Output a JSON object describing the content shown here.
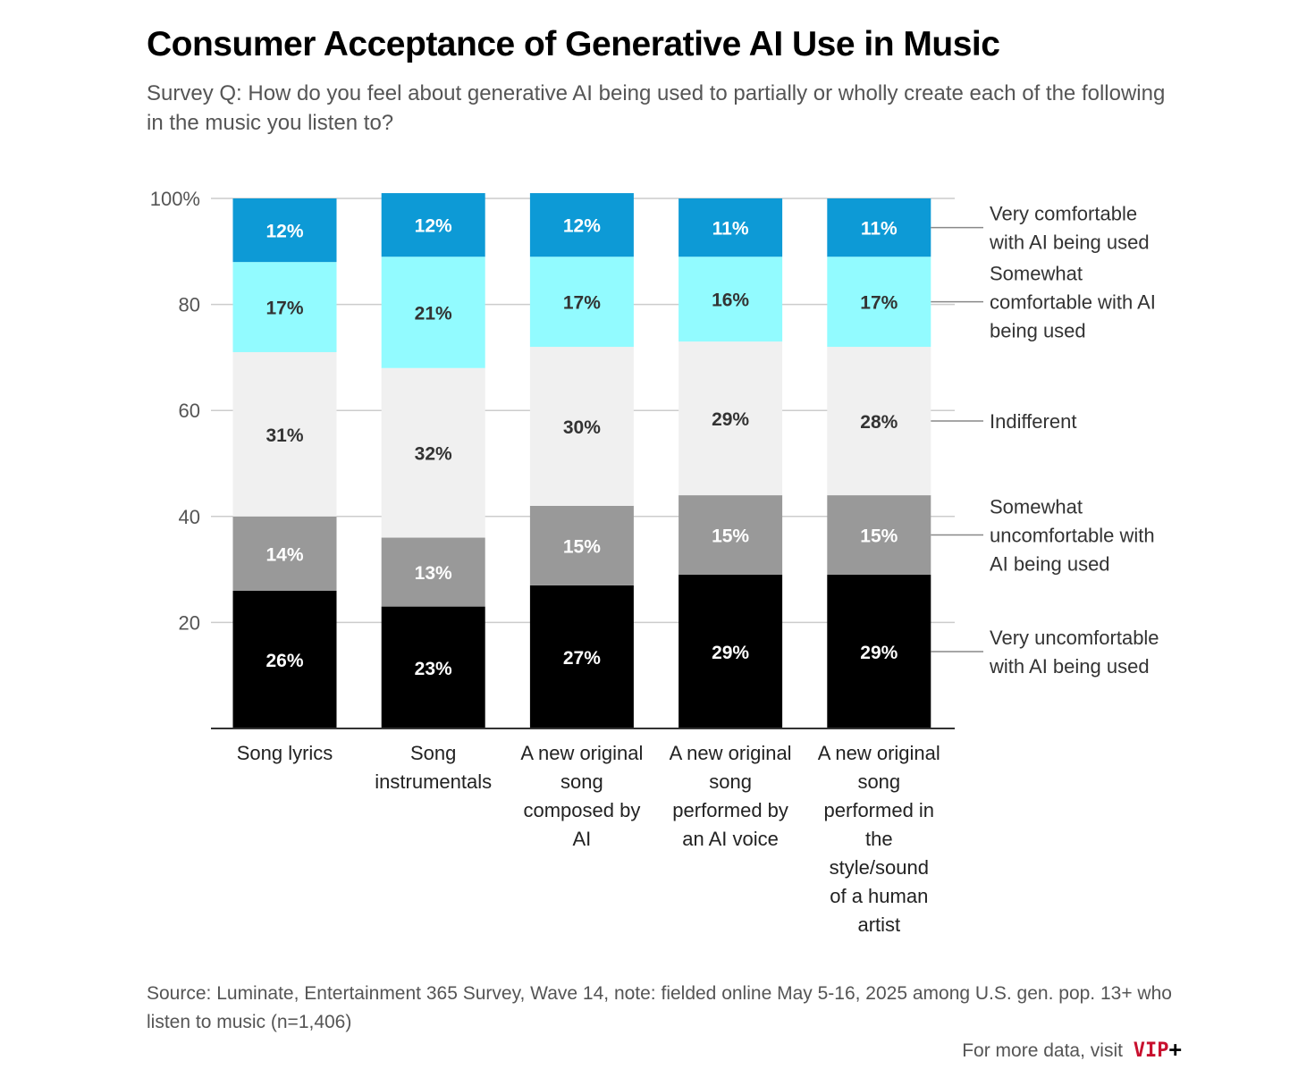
{
  "title": "Consumer Acceptance of Generative AI Use in Music",
  "subtitle": "Survey Q: How do you feel about generative AI being used to partially or wholly create each of the following in the music you listen to?",
  "source": "Source: Luminate, Entertainment 365 Survey, Wave 14, note: fielded online May 5-16, 2025 among U.S. gen. pop. 13+ who listen to music (n=1,406)",
  "footer": {
    "text": "For more data, visit",
    "brand": "VIP",
    "brand_plus": "+"
  },
  "colors": {
    "very_comfortable": "#0d9ad6",
    "somewhat_comfortable": "#92fbff",
    "indifferent": "#f0f0f0",
    "somewhat_uncomfortable": "#999999",
    "very_uncomfortable": "#000000",
    "grid": "#cccccc",
    "axis": "#333333",
    "brand": "#c8102e"
  },
  "chart_data": {
    "type": "bar",
    "stacked": true,
    "categories": [
      "Song lyrics",
      "Song instrumentals",
      "A new original song composed by AI",
      "A new original song performed by an AI voice",
      "A new original song performed in the style/sound of a human artist"
    ],
    "category_label_lines": [
      [
        "Song lyrics"
      ],
      [
        "Song",
        "instrumentals"
      ],
      [
        "A new original",
        "song",
        "composed by",
        "AI"
      ],
      [
        "A new original",
        "song",
        "performed by",
        "an AI voice"
      ],
      [
        "A new original",
        "song",
        "performed in",
        "the",
        "style/sound",
        "of a human",
        "artist"
      ]
    ],
    "series": [
      {
        "name": "Very uncomfortable with AI being used",
        "label_lines": [
          "Very uncomfortable",
          "with AI being used"
        ],
        "color_key": "very_uncomfortable",
        "label_color": "#ffffff",
        "values": [
          26,
          23,
          27,
          29,
          29
        ],
        "labels": [
          "26%",
          "23%",
          "27%",
          "29%",
          "29%"
        ]
      },
      {
        "name": "Somewhat uncomfortable with AI being used",
        "label_lines": [
          "Somewhat",
          "uncomfortable with",
          "AI being used"
        ],
        "color_key": "somewhat_uncomfortable",
        "label_color": "#ffffff",
        "values": [
          14,
          13,
          15,
          15,
          15
        ],
        "labels": [
          "14%",
          "13%",
          "15%",
          "15%",
          "15%"
        ]
      },
      {
        "name": "Indifferent",
        "label_lines": [
          "Indifferent"
        ],
        "color_key": "indifferent",
        "label_color": "#333333",
        "values": [
          31,
          32,
          30,
          29,
          28
        ],
        "labels": [
          "31%",
          "32%",
          "30%",
          "29%",
          "28%"
        ]
      },
      {
        "name": "Somewhat comfortable with AI being used",
        "label_lines": [
          "Somewhat",
          "comfortable with AI",
          "being used"
        ],
        "color_key": "somewhat_comfortable",
        "label_color": "#333333",
        "values": [
          17,
          21,
          17,
          16,
          17
        ],
        "labels": [
          "17%",
          "21%",
          "17%",
          "16%",
          "17%"
        ]
      },
      {
        "name": "Very comfortable with AI being used",
        "label_lines": [
          "Very comfortable",
          "with AI being used"
        ],
        "color_key": "very_comfortable",
        "label_color": "#ffffff",
        "values": [
          12,
          12,
          12,
          11,
          11
        ],
        "labels": [
          "12%",
          "12%",
          "12%",
          "11%",
          "11%"
        ]
      }
    ],
    "ylim": [
      0,
      100
    ],
    "yticks": [
      20,
      40,
      60,
      80,
      100
    ],
    "ytick_labels": [
      "20",
      "40",
      "60",
      "80",
      "100%"
    ],
    "grid": true,
    "legend": "right, direct labels"
  }
}
